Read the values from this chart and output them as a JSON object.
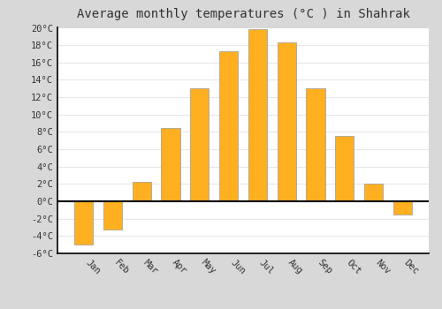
{
  "title": "Average monthly temperatures (°C ) in Shahrak",
  "months": [
    "Jan",
    "Feb",
    "Mar",
    "Apr",
    "May",
    "Jun",
    "Jul",
    "Aug",
    "Sep",
    "Oct",
    "Nov",
    "Dec"
  ],
  "temperatures": [
    -5.0,
    -3.3,
    2.2,
    8.5,
    13.0,
    17.3,
    19.8,
    18.3,
    13.0,
    7.5,
    2.0,
    -1.5
  ],
  "bar_color_top": "#FFB733",
  "bar_color_bottom": "#FFA500",
  "bar_edge_color": "#999999",
  "ylim": [
    -6,
    20
  ],
  "yticks": [
    -6,
    -4,
    -2,
    0,
    2,
    4,
    6,
    8,
    10,
    12,
    14,
    16,
    18,
    20
  ],
  "ytick_labels": [
    "-6°C",
    "-4°C",
    "-2°C",
    "0°C",
    "2°C",
    "4°C",
    "6°C",
    "8°C",
    "10°C",
    "12°C",
    "14°C",
    "16°C",
    "18°C",
    "20°C"
  ],
  "figure_bg_color": "#d8d8d8",
  "plot_bg_color": "#ffffff",
  "grid_color": "#e8e8e8",
  "title_fontsize": 10,
  "tick_fontsize": 7.5,
  "bar_width": 0.65
}
